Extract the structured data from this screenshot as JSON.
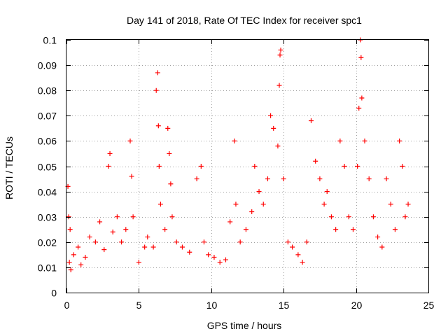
{
  "chart_data": {
    "type": "scatter",
    "title": "Day 141 of 2018, Rate Of TEC Index for receiver spc1",
    "xlabel": "GPS time / hours",
    "ylabel": "ROTI / TECUs",
    "xlim": [
      0,
      25
    ],
    "ylim": [
      0,
      0.1
    ],
    "xticks": [
      "0",
      "5",
      "10",
      "15",
      "20",
      "25"
    ],
    "yticks": [
      "0",
      "0.01",
      "0.02",
      "0.03",
      "0.04",
      "0.05",
      "0.06",
      "0.07",
      "0.08",
      "0.09",
      "0.1"
    ],
    "grid": true,
    "marker": "+",
    "color": "#ff0000",
    "series": [
      {
        "name": "ROTI",
        "x": [
          0.1,
          0.15,
          0.2,
          0.25,
          0.3,
          0.5,
          0.8,
          1.0,
          1.3,
          1.6,
          2.0,
          2.3,
          2.6,
          2.9,
          3.0,
          3.2,
          3.5,
          3.8,
          4.1,
          4.4,
          4.5,
          4.6,
          5.0,
          5.4,
          5.6,
          6.0,
          6.2,
          6.3,
          6.35,
          6.4,
          6.5,
          6.8,
          7.0,
          7.1,
          7.2,
          7.3,
          7.6,
          8.0,
          8.5,
          9.0,
          9.3,
          9.5,
          9.8,
          10.2,
          10.6,
          11.0,
          11.3,
          11.6,
          11.7,
          12.0,
          12.4,
          12.8,
          13.0,
          13.3,
          13.6,
          13.9,
          14.1,
          14.3,
          14.6,
          14.7,
          14.75,
          14.8,
          15.0,
          15.3,
          15.6,
          16.0,
          16.3,
          16.6,
          16.9,
          17.2,
          17.5,
          17.8,
          18.0,
          18.3,
          18.6,
          18.9,
          19.2,
          19.5,
          19.8,
          20.1,
          20.2,
          20.3,
          20.35,
          20.4,
          20.6,
          20.9,
          21.2,
          21.5,
          21.8,
          22.1,
          22.4,
          22.7,
          23.0,
          23.2,
          23.4,
          23.6
        ],
        "y": [
          0.042,
          0.03,
          0.012,
          0.025,
          0.009,
          0.015,
          0.018,
          0.011,
          0.014,
          0.022,
          0.02,
          0.028,
          0.017,
          0.05,
          0.055,
          0.024,
          0.03,
          0.02,
          0.025,
          0.06,
          0.046,
          0.03,
          0.012,
          0.018,
          0.022,
          0.018,
          0.08,
          0.087,
          0.066,
          0.05,
          0.035,
          0.025,
          0.065,
          0.055,
          0.043,
          0.03,
          0.02,
          0.018,
          0.016,
          0.045,
          0.05,
          0.02,
          0.015,
          0.014,
          0.012,
          0.013,
          0.028,
          0.06,
          0.035,
          0.02,
          0.025,
          0.032,
          0.05,
          0.04,
          0.035,
          0.045,
          0.07,
          0.065,
          0.058,
          0.082,
          0.094,
          0.096,
          0.045,
          0.02,
          0.018,
          0.015,
          0.012,
          0.02,
          0.068,
          0.052,
          0.045,
          0.035,
          0.04,
          0.03,
          0.025,
          0.06,
          0.05,
          0.03,
          0.025,
          0.05,
          0.073,
          0.1,
          0.093,
          0.077,
          0.06,
          0.045,
          0.03,
          0.022,
          0.018,
          0.045,
          0.035,
          0.025,
          0.06,
          0.05,
          0.03,
          0.035
        ]
      }
    ]
  }
}
